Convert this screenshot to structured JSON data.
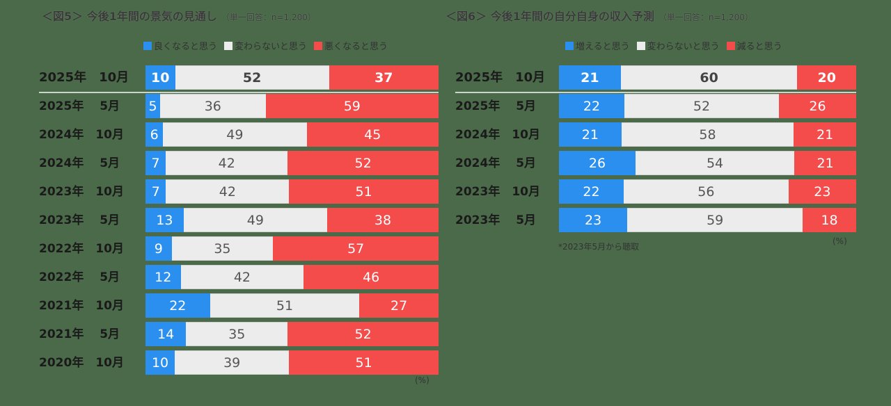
{
  "colors": {
    "positive": "#2b8ff0",
    "neutral": "#ececec",
    "negative": "#f44b4b",
    "background": "#4b6a4a"
  },
  "chart_data": [
    {
      "type": "bar",
      "orientation": "horizontal",
      "stacked": true,
      "title": "＜図5＞ 今後1年間の景気の見通し",
      "subtitle": "（単一回答：n=1,200）",
      "unit": "(%)",
      "legend": [
        "良くなると思う",
        "変わらないと思う",
        "悪くなると思う"
      ],
      "legend_position": "top-right",
      "categories": [
        "2025年　10月",
        "2025年　 5月",
        "2024年　10月",
        "2024年　 5月",
        "2023年　10月",
        "2023年　 5月",
        "2022年　10月",
        "2022年　 5月",
        "2021年　10月",
        "2021年　 5月",
        "2020年　10月"
      ],
      "series": [
        {
          "name": "良くなると思う",
          "values": [
            10,
            5,
            6,
            7,
            7,
            13,
            9,
            12,
            22,
            14,
            10
          ]
        },
        {
          "name": "変わらないと思う",
          "values": [
            52,
            36,
            49,
            42,
            42,
            49,
            35,
            42,
            51,
            35,
            39
          ]
        },
        {
          "name": "悪くなると思う",
          "values": [
            37,
            59,
            45,
            52,
            51,
            38,
            57,
            46,
            27,
            52,
            51
          ]
        }
      ]
    },
    {
      "type": "bar",
      "orientation": "horizontal",
      "stacked": true,
      "title": "＜図6＞ 今後1年間の自分自身の収入予測",
      "subtitle": "（単一回答：n=1,200）",
      "unit": "(%)",
      "note": "*2023年5月から聴取",
      "legend": [
        "増えると思う",
        "変わらないと思う",
        "減ると思う"
      ],
      "legend_position": "top-right",
      "categories": [
        "2025年　10月",
        "2025年　 5月",
        "2024年　10月",
        "2024年　 5月",
        "2023年　10月",
        "2023年　 5月"
      ],
      "series": [
        {
          "name": "増えると思う",
          "values": [
            21,
            22,
            21,
            26,
            22,
            23
          ]
        },
        {
          "name": "変わらないと思う",
          "values": [
            60,
            52,
            58,
            54,
            56,
            59
          ]
        },
        {
          "name": "減ると思う",
          "values": [
            20,
            26,
            21,
            21,
            23,
            18
          ]
        }
      ]
    }
  ]
}
